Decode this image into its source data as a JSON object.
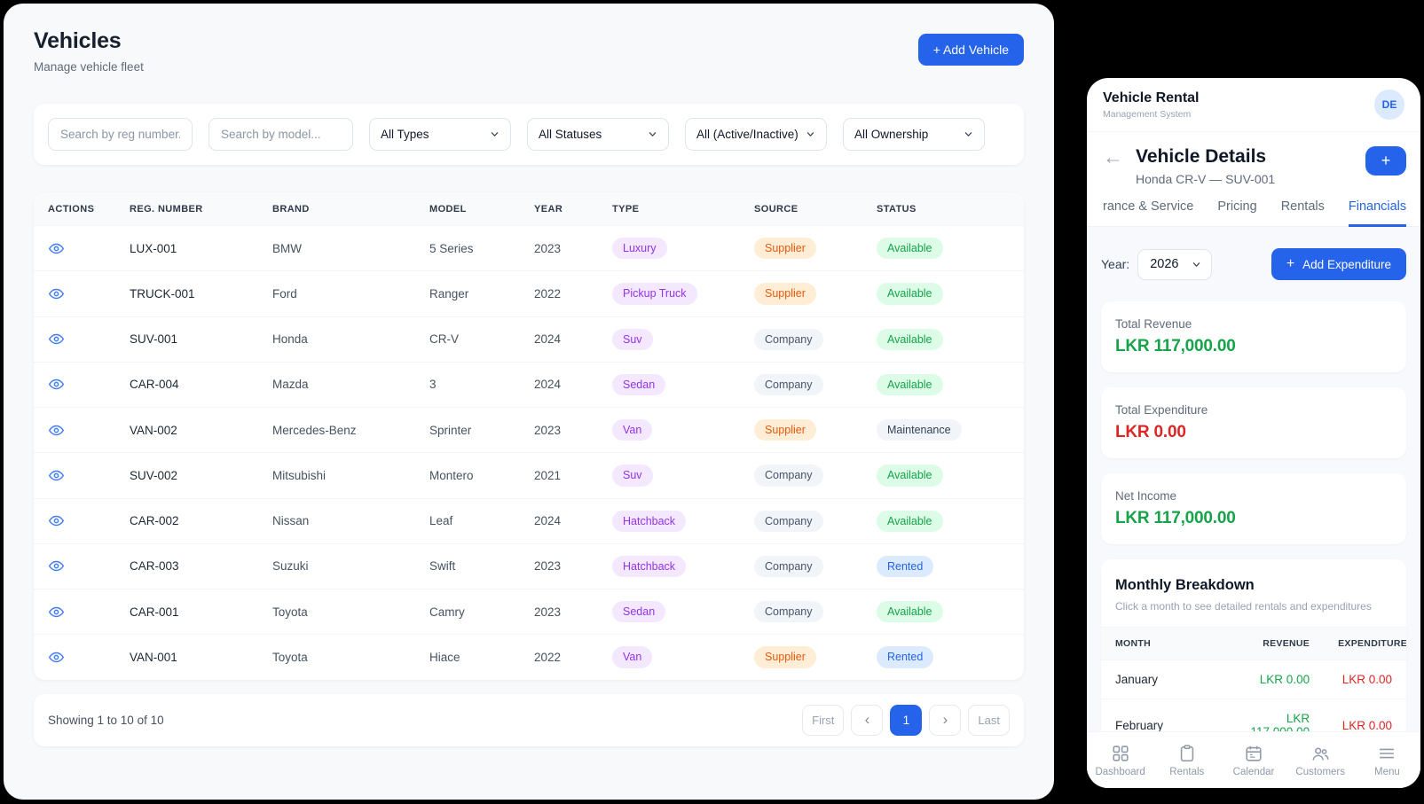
{
  "colors": {
    "accent": "#2563eb",
    "green": "#16a34a",
    "red": "#dc2626",
    "panel_bg": "#f8f9fb",
    "background": "#000000"
  },
  "badge_styles": {
    "type": {
      "fg": "#9333ea",
      "bg": "#f3e8ff"
    },
    "Supplier": {
      "fg": "#ea580c",
      "bg": "#ffedd5"
    },
    "Company": {
      "fg": "#475569",
      "bg": "#f1f4f8"
    },
    "Available": {
      "fg": "#16a34a",
      "bg": "#dcfce7"
    },
    "Maintenance": {
      "fg": "#334155",
      "bg": "#f1f4f8"
    },
    "Rented": {
      "fg": "#2563eb",
      "bg": "#dbeafe"
    }
  },
  "main": {
    "title": "Vehicles",
    "subtitle": "Manage vehicle fleet",
    "add_vehicle_label": "+ Add Vehicle",
    "filters": {
      "search_reg_placeholder": "Search by reg number..",
      "search_model_placeholder": "Search by model...",
      "selects": [
        {
          "value": "All Types",
          "name": "type-filter-select"
        },
        {
          "value": "All Statuses",
          "name": "status-filter-select"
        },
        {
          "value": "All (Active/Inactive)",
          "name": "active-filter-select"
        },
        {
          "value": "All Ownership",
          "name": "ownership-filter-select"
        }
      ]
    },
    "table": {
      "columns": [
        "ACTIONS",
        "REG. NUMBER",
        "BRAND",
        "MODEL",
        "YEAR",
        "TYPE",
        "SOURCE",
        "STATUS"
      ],
      "rows": [
        {
          "reg": "LUX-001",
          "brand": "BMW",
          "model": "5 Series",
          "year": "2023",
          "type": "Luxury",
          "source": "Supplier",
          "status": "Available"
        },
        {
          "reg": "TRUCK-001",
          "brand": "Ford",
          "model": "Ranger",
          "year": "2022",
          "type": "Pickup Truck",
          "source": "Supplier",
          "status": "Available"
        },
        {
          "reg": "SUV-001",
          "brand": "Honda",
          "model": "CR-V",
          "year": "2024",
          "type": "Suv",
          "source": "Company",
          "status": "Available"
        },
        {
          "reg": "CAR-004",
          "brand": "Mazda",
          "model": "3",
          "year": "2024",
          "type": "Sedan",
          "source": "Company",
          "status": "Available"
        },
        {
          "reg": "VAN-002",
          "brand": "Mercedes-Benz",
          "model": "Sprinter",
          "year": "2023",
          "type": "Van",
          "source": "Supplier",
          "status": "Maintenance"
        },
        {
          "reg": "SUV-002",
          "brand": "Mitsubishi",
          "model": "Montero",
          "year": "2021",
          "type": "Suv",
          "source": "Company",
          "status": "Available"
        },
        {
          "reg": "CAR-002",
          "brand": "Nissan",
          "model": "Leaf",
          "year": "2024",
          "type": "Hatchback",
          "source": "Company",
          "status": "Available"
        },
        {
          "reg": "CAR-003",
          "brand": "Suzuki",
          "model": "Swift",
          "year": "2023",
          "type": "Hatchback",
          "source": "Company",
          "status": "Rented"
        },
        {
          "reg": "CAR-001",
          "brand": "Toyota",
          "model": "Camry",
          "year": "2023",
          "type": "Sedan",
          "source": "Company",
          "status": "Available"
        },
        {
          "reg": "VAN-001",
          "brand": "Toyota",
          "model": "Hiace",
          "year": "2022",
          "type": "Van",
          "source": "Supplier",
          "status": "Rented"
        }
      ]
    },
    "pagination": {
      "summary": "Showing 1 to 10 of 10",
      "buttons": [
        {
          "label": "First",
          "name": "first-page-button",
          "arrow": false,
          "active": false
        },
        {
          "label": "‹",
          "name": "prev-page-button",
          "arrow": true,
          "active": false
        },
        {
          "label": "1",
          "name": "page-1-button",
          "arrow": false,
          "active": true
        },
        {
          "label": "›",
          "name": "next-page-button",
          "arrow": true,
          "active": false
        },
        {
          "label": "Last",
          "name": "last-page-button",
          "arrow": false,
          "active": false
        }
      ]
    }
  },
  "panel": {
    "app_title": "Vehicle Rental",
    "app_subtitle": "Management System",
    "avatar": "DE",
    "back_icon": "←",
    "details_title": "Vehicle Details",
    "details_subtitle": "Honda CR-V — SUV-001",
    "add_button": "+",
    "tabs": [
      {
        "label": "rance & Service",
        "name": "tab-insurance-service",
        "active": false
      },
      {
        "label": "Pricing",
        "name": "tab-pricing",
        "active": false
      },
      {
        "label": "Rentals",
        "name": "tab-rentals",
        "active": false
      },
      {
        "label": "Financials",
        "name": "tab-financials",
        "active": true
      }
    ],
    "year_label": "Year:",
    "year_value": "2026",
    "plus_icon": "+",
    "add_expenditure_label": "Add Expenditure",
    "summary_cards": [
      {
        "label": "Total Revenue",
        "value": "LKR 117,000.00",
        "tone": "green"
      },
      {
        "label": "Total Expenditure",
        "value": "LKR 0.00",
        "tone": "red"
      },
      {
        "label": "Net Income",
        "value": "LKR 117,000.00",
        "tone": "green"
      }
    ],
    "monthly": {
      "title": "Monthly Breakdown",
      "subtitle": "Click a month to see detailed rentals and expenditures",
      "columns": [
        "MONTH",
        "REVENUE",
        "EXPENDITURE"
      ],
      "rows": [
        {
          "month": "January",
          "revenue": "LKR 0.00",
          "expenditure": "LKR 0.00"
        },
        {
          "month": "February",
          "revenue": "LKR 117,000.00",
          "expenditure": "LKR 0.00"
        }
      ]
    },
    "bottom_nav": [
      {
        "label": "Dashboard",
        "icon": "grid",
        "icon_name": "dashboard-grid-icon"
      },
      {
        "label": "Rentals",
        "icon": "clipboard",
        "icon_name": "rentals-clipboard-icon"
      },
      {
        "label": "Calendar",
        "icon": "calendar",
        "icon_name": "calendar-icon"
      },
      {
        "label": "Customers",
        "icon": "customers",
        "icon_name": "customers-people-icon"
      },
      {
        "label": "Menu",
        "icon": "menu",
        "icon_name": "menu-hamburger-icon"
      }
    ]
  }
}
